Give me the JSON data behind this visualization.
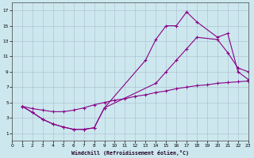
{
  "background_color": "#cce8ee",
  "line_color": "#880088",
  "grid_color": "#aabbcc",
  "xlabel": "Windchill (Refroidissement éolien,°C)",
  "xlim": [
    0,
    23
  ],
  "ylim": [
    0,
    18
  ],
  "xticks": [
    0,
    1,
    2,
    3,
    4,
    5,
    6,
    7,
    8,
    9,
    10,
    11,
    12,
    13,
    14,
    15,
    16,
    17,
    18,
    19,
    20,
    21,
    22,
    23
  ],
  "yticks": [
    1,
    3,
    5,
    7,
    9,
    11,
    13,
    15,
    17
  ],
  "line1": {
    "x": [
      1,
      2,
      3,
      4,
      5,
      6,
      7,
      8,
      9,
      10,
      11,
      12,
      13,
      14,
      15,
      16,
      17,
      18,
      19,
      20,
      21,
      22,
      23
    ],
    "y": [
      4.5,
      4.2,
      4.0,
      3.8,
      3.8,
      4.0,
      4.3,
      4.7,
      5.0,
      5.3,
      5.5,
      5.8,
      6.0,
      6.3,
      6.5,
      6.8,
      7.0,
      7.2,
      7.3,
      7.5,
      7.6,
      7.7,
      7.8
    ]
  },
  "line2": {
    "x": [
      1,
      2,
      3,
      4,
      5,
      6,
      7,
      8,
      9,
      14,
      15,
      16,
      17,
      18,
      20,
      21,
      22,
      23
    ],
    "y": [
      4.5,
      3.7,
      2.8,
      2.2,
      1.8,
      1.5,
      1.5,
      1.7,
      4.3,
      7.5,
      9.0,
      10.5,
      12.0,
      13.5,
      13.2,
      11.5,
      9.5,
      9.0
    ]
  },
  "line3": {
    "x": [
      1,
      2,
      3,
      4,
      5,
      6,
      7,
      8,
      9,
      13,
      14,
      15,
      16,
      17,
      18,
      20,
      21,
      22,
      23
    ],
    "y": [
      4.5,
      3.7,
      2.8,
      2.2,
      1.8,
      1.5,
      1.5,
      1.7,
      4.3,
      10.5,
      13.2,
      15.0,
      15.0,
      16.8,
      15.5,
      13.5,
      14.0,
      9.0,
      8.0
    ]
  }
}
